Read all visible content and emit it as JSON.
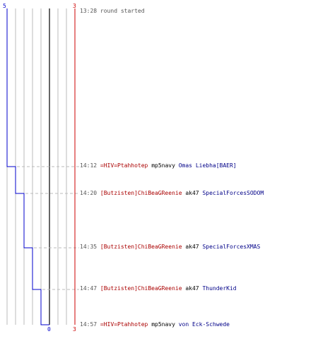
{
  "colors": {
    "team_blue": "#0000cc",
    "team_red": "#cc0000",
    "grid": "#bbbbbb",
    "center_line": "#666666",
    "dashed": "#bbbbbb"
  },
  "chart": {
    "team_blue_start": "5",
    "team_red_start": "3",
    "team_blue_end": "0",
    "team_red_end": "3"
  },
  "log": [
    {
      "time": "13:28",
      "message": "round started"
    },
    {
      "time": "14:12",
      "killer": "=HIV=Ptahhotep",
      "weapon": "mp5navy",
      "victim": "Omas Liebha[BAER]"
    },
    {
      "time": "14:20",
      "killer": "[Butzisten]ChiBeaGReenie",
      "weapon": "ak47",
      "victim": "SpecialForcesSODOM"
    },
    {
      "time": "14:35",
      "killer": "[Butzisten]ChiBeaGReenie",
      "weapon": "ak47",
      "victim": "SpecialForcesXMAS"
    },
    {
      "time": "14:47",
      "killer": "[Butzisten]ChiBeaGReenie",
      "weapon": "ak47",
      "victim": "ThunderKid"
    },
    {
      "time": "14:57",
      "killer": "=HIV=Ptahhotep",
      "weapon": "mp5navy",
      "victim": "von Eck-Schwede"
    }
  ]
}
